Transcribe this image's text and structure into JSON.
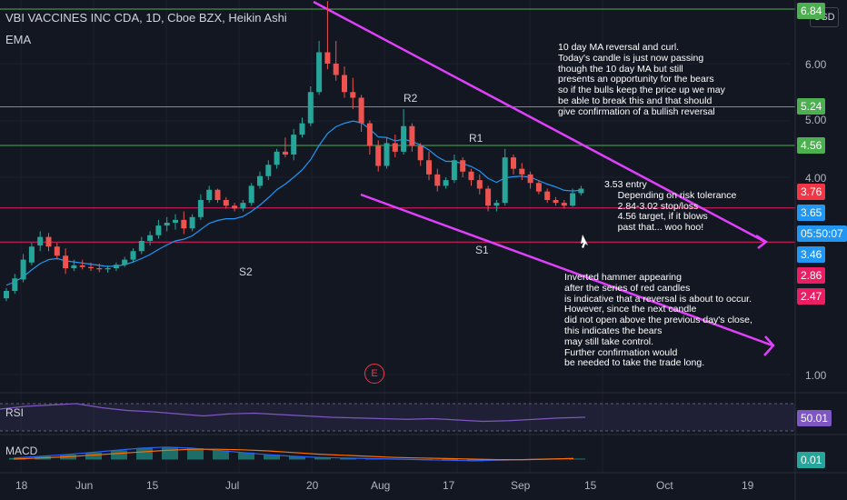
{
  "header": {
    "title": "VBI VACCINES INC CDA, 1D, Cboe BZX, Heikin Ashi",
    "indicator": "EMA",
    "currency": "USD"
  },
  "price_axis": {
    "labels": [
      "6.00",
      "5.00",
      "4.00",
      "1.00"
    ]
  },
  "price_tags": [
    {
      "value": "6.84",
      "color": "#4caf50"
    },
    {
      "value": "5.24",
      "color": "#4caf50"
    },
    {
      "value": "4.56",
      "color": "#4caf50"
    },
    {
      "value": "3.76",
      "color": "#f23645"
    },
    {
      "value": "3.65",
      "color": "#2196f3"
    },
    {
      "value": "05:50:07",
      "color": "#2196f3"
    },
    {
      "value": "3.46",
      "color": "#2196f3"
    },
    {
      "value": "2.86",
      "color": "#e91e63"
    },
    {
      "value": "2.47",
      "color": "#e91e63"
    }
  ],
  "time_axis": {
    "labels": [
      "18",
      "Jun",
      "15",
      "Jul",
      "20",
      "Aug",
      "17",
      "Sep",
      "15",
      "Oct",
      "19"
    ]
  },
  "point_labels": {
    "r2": "R2",
    "r1": "R1",
    "s1": "S1",
    "s2": "S2"
  },
  "notes": {
    "top": "10 day MA reversal and curl.\nToday's candle is just now passing\nthough the 10 day MA but still\npresents an opportunity for the bears\nso if the bulls keep the price up we may\nbe able to break this and that should\ngive confirmation of a bullish reversal",
    "entry": "3.53 entry\n     Depending on risk tolerance\n     2.84-3.02 stop/loss\n     4.56 target, if it blows\n     past that... woo hoo!",
    "bottom": "Inverted hammer appearing\nafter the series of red candles\nis indicative that a reversal is about to occur.\nHowever, since the next candle\ndid not open above the previous day's close,\nthis indicates the bears\nmay still take control.\nFurther confirmation would\nbe needed to take the trade long."
  },
  "earnings_badge": "E",
  "rsi": {
    "label": "RSI",
    "value": "50.01",
    "color": "#7e57c2"
  },
  "macd": {
    "label": "MACD",
    "value": "0.01",
    "color": "#26a69a"
  },
  "colors": {
    "up": "#26a69a",
    "down": "#ef5350",
    "ema": "#2196f3",
    "trendline": "#e040fb",
    "support": "#4caf50",
    "resistance": "#e91e63"
  },
  "chart_data": {
    "type": "candlestick",
    "ohlc": [
      [
        1.87,
        2.05,
        1.82,
        2.0
      ],
      [
        2.0,
        2.3,
        1.95,
        2.22
      ],
      [
        2.2,
        2.65,
        2.15,
        2.55
      ],
      [
        2.5,
        2.85,
        2.45,
        2.78
      ],
      [
        2.8,
        3.05,
        2.7,
        2.95
      ],
      [
        2.95,
        3.02,
        2.7,
        2.78
      ],
      [
        2.78,
        2.85,
        2.55,
        2.62
      ],
      [
        2.62,
        2.75,
        2.3,
        2.4
      ],
      [
        2.4,
        2.55,
        2.35,
        2.45
      ],
      [
        2.45,
        2.55,
        2.38,
        2.42
      ],
      [
        2.42,
        2.5,
        2.35,
        2.4
      ],
      [
        2.4,
        2.48,
        2.33,
        2.38
      ],
      [
        2.38,
        2.45,
        2.32,
        2.4
      ],
      [
        2.4,
        2.5,
        2.35,
        2.46
      ],
      [
        2.46,
        2.6,
        2.42,
        2.55
      ],
      [
        2.55,
        2.75,
        2.5,
        2.7
      ],
      [
        2.7,
        2.95,
        2.65,
        2.88
      ],
      [
        2.88,
        3.05,
        2.8,
        2.98
      ],
      [
        2.98,
        3.25,
        2.92,
        3.15
      ],
      [
        3.15,
        3.3,
        3.05,
        3.2
      ],
      [
        3.2,
        3.35,
        3.08,
        3.25
      ],
      [
        3.25,
        3.4,
        3.0,
        3.1
      ],
      [
        3.1,
        3.35,
        3.05,
        3.3
      ],
      [
        3.3,
        3.7,
        3.25,
        3.6
      ],
      [
        3.6,
        3.85,
        3.55,
        3.78
      ],
      [
        3.78,
        3.8,
        3.55,
        3.6
      ],
      [
        3.6,
        3.65,
        3.45,
        3.5
      ],
      [
        3.5,
        3.55,
        3.4,
        3.45
      ],
      [
        3.45,
        3.6,
        3.4,
        3.55
      ],
      [
        3.55,
        3.9,
        3.5,
        3.85
      ],
      [
        3.85,
        4.1,
        3.8,
        4.02
      ],
      [
        4.02,
        4.3,
        3.95,
        4.22
      ],
      [
        4.22,
        4.5,
        4.15,
        4.45
      ],
      [
        4.45,
        4.7,
        4.35,
        4.4
      ],
      [
        4.4,
        4.85,
        4.3,
        4.75
      ],
      [
        4.75,
        5.05,
        4.7,
        4.95
      ],
      [
        4.95,
        5.6,
        4.9,
        5.5
      ],
      [
        5.5,
        6.4,
        5.45,
        6.2
      ],
      [
        6.2,
        7.1,
        5.9,
        6.0
      ],
      [
        6.0,
        6.4,
        5.7,
        5.8
      ],
      [
        5.8,
        5.95,
        5.4,
        5.5
      ],
      [
        5.5,
        5.75,
        5.2,
        5.4
      ],
      [
        5.4,
        5.45,
        4.8,
        4.95
      ],
      [
        4.95,
        5.0,
        4.4,
        4.55
      ],
      [
        4.55,
        4.65,
        4.1,
        4.2
      ],
      [
        4.2,
        4.7,
        4.15,
        4.6
      ],
      [
        4.6,
        4.75,
        4.35,
        4.45
      ],
      [
        4.45,
        5.2,
        4.4,
        4.9
      ],
      [
        4.9,
        4.95,
        4.45,
        4.55
      ],
      [
        4.55,
        4.6,
        4.2,
        4.3
      ],
      [
        4.3,
        4.45,
        3.95,
        4.05
      ],
      [
        4.05,
        4.15,
        3.75,
        3.85
      ],
      [
        3.85,
        4.0,
        3.8,
        3.95
      ],
      [
        3.95,
        4.4,
        3.9,
        4.3
      ],
      [
        4.3,
        4.35,
        4.0,
        4.1
      ],
      [
        4.1,
        4.15,
        3.85,
        3.95
      ],
      [
        3.95,
        4.05,
        3.7,
        3.8
      ],
      [
        3.8,
        3.85,
        3.4,
        3.5
      ],
      [
        3.5,
        3.6,
        3.4,
        3.55
      ],
      [
        3.55,
        4.5,
        3.5,
        4.35
      ],
      [
        4.35,
        4.4,
        4.05,
        4.15
      ],
      [
        4.15,
        4.25,
        3.95,
        4.05
      ],
      [
        4.05,
        4.1,
        3.8,
        3.9
      ],
      [
        3.9,
        3.95,
        3.7,
        3.75
      ],
      [
        3.75,
        3.8,
        3.55,
        3.6
      ],
      [
        3.6,
        3.65,
        3.5,
        3.55
      ],
      [
        3.55,
        3.6,
        3.45,
        3.5
      ],
      [
        3.5,
        3.8,
        3.48,
        3.72
      ],
      [
        3.72,
        3.85,
        3.68,
        3.8
      ]
    ],
    "ema": [
      2.1,
      2.16,
      2.25,
      2.37,
      2.48,
      2.55,
      2.57,
      2.53,
      2.51,
      2.49,
      2.47,
      2.45,
      2.43,
      2.44,
      2.46,
      2.51,
      2.57,
      2.64,
      2.73,
      2.81,
      2.88,
      2.91,
      2.97,
      3.08,
      3.19,
      3.24,
      3.27,
      3.27,
      3.31,
      3.4,
      3.51,
      3.64,
      3.78,
      3.88,
      4.0,
      4.13,
      4.31,
      4.56,
      4.77,
      4.89,
      4.95,
      4.99,
      4.96,
      4.85,
      4.71,
      4.7,
      4.64,
      4.67,
      4.63,
      4.57,
      4.48,
      4.36,
      4.28,
      4.28,
      4.24,
      4.19,
      4.11,
      3.98,
      3.91,
      3.99,
      4.01,
      4.02,
      4.0,
      3.94,
      3.88,
      3.83,
      3.77,
      3.76,
      3.77
    ],
    "rsi_series": [
      62,
      66,
      68,
      70,
      64,
      60,
      58,
      55,
      52,
      55,
      56,
      54,
      52,
      50,
      49,
      48,
      47,
      48,
      46,
      44,
      45,
      47,
      49,
      50
    ],
    "macd_series": [
      0.02,
      0.05,
      0.08,
      0.12,
      0.16,
      0.2,
      0.22,
      0.2,
      0.16,
      0.12,
      0.08,
      0.05,
      0.03,
      0.02,
      0.01,
      0.0,
      -0.01,
      -0.02,
      -0.03,
      -0.02,
      -0.01,
      0.0,
      0.01
    ],
    "signal_series": [
      0.0,
      0.02,
      0.04,
      0.07,
      0.1,
      0.13,
      0.16,
      0.18,
      0.18,
      0.17,
      0.15,
      0.12,
      0.09,
      0.07,
      0.05,
      0.03,
      0.02,
      0.01,
      0.0,
      -0.01,
      -0.01,
      0.0,
      0.01
    ],
    "horizontal_levels": [
      6.84,
      5.24,
      4.56,
      3.46,
      2.86
    ],
    "price_range": [
      0.75,
      7.2
    ]
  }
}
